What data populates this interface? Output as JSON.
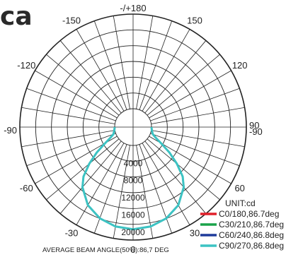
{
  "header": {
    "heading_text": "ca"
  },
  "chart_data": {
    "type": "polar",
    "angle_labels": [
      {
        "deg": 180,
        "text": "-/+180"
      },
      {
        "deg": 150,
        "text": "150"
      },
      {
        "deg": -150,
        "text": "-150"
      },
      {
        "deg": 120,
        "text": "120"
      },
      {
        "deg": -120,
        "text": "-120"
      },
      {
        "deg": 90,
        "text": "90"
      },
      {
        "deg": -90,
        "text": "-90"
      },
      {
        "deg": 60,
        "text": "60"
      },
      {
        "deg": -60,
        "text": "-60"
      },
      {
        "deg": 30,
        "text": "30"
      },
      {
        "deg": -30,
        "text": "-30"
      },
      {
        "deg": 0,
        "text": "0"
      }
    ],
    "overlap_label": "-90",
    "radial_max": 22000,
    "radial_labels": [
      "4000",
      "8000",
      "12000",
      "16000",
      "20000"
    ],
    "radial_values": [
      4000,
      8000,
      12000,
      16000,
      20000
    ],
    "unit_label": "UNIT:cd",
    "footer": "AVERAGE BEAM ANGLE(50%):86,7 DEG",
    "series": [
      {
        "name": "C0/180,86.7deg",
        "color": "#e0202a",
        "angles": [
          0,
          10,
          20,
          30,
          40,
          45,
          50,
          55,
          60,
          65,
          70,
          80,
          90
        ],
        "values": [
          19500,
          19200,
          18300,
          16700,
          14000,
          12000,
          9000,
          6000,
          3200,
          1500,
          600,
          150,
          0
        ]
      },
      {
        "name": "C30/210,86.7deg",
        "color": "#1aa34a",
        "angles": [
          0,
          10,
          20,
          30,
          40,
          45,
          50,
          55,
          60,
          65,
          70,
          80,
          90
        ],
        "values": [
          19500,
          19200,
          18300,
          16700,
          14000,
          12000,
          9000,
          6000,
          3200,
          1500,
          600,
          150,
          0
        ]
      },
      {
        "name": "C60/240,86.8deg",
        "color": "#1f3b9b",
        "angles": [
          0,
          10,
          20,
          30,
          40,
          45,
          50,
          55,
          60,
          65,
          70,
          80,
          90
        ],
        "values": [
          19500,
          19200,
          18300,
          16700,
          14000,
          12000,
          9000,
          6000,
          3200,
          1500,
          600,
          150,
          0
        ]
      },
      {
        "name": "C90/270,86.8deg",
        "color": "#3cc3c3",
        "angles": [
          0,
          10,
          20,
          30,
          40,
          45,
          50,
          55,
          60,
          65,
          70,
          80,
          90
        ],
        "values": [
          19500,
          19200,
          18300,
          16700,
          14000,
          12000,
          9000,
          6000,
          3200,
          1500,
          600,
          150,
          0
        ]
      }
    ]
  }
}
